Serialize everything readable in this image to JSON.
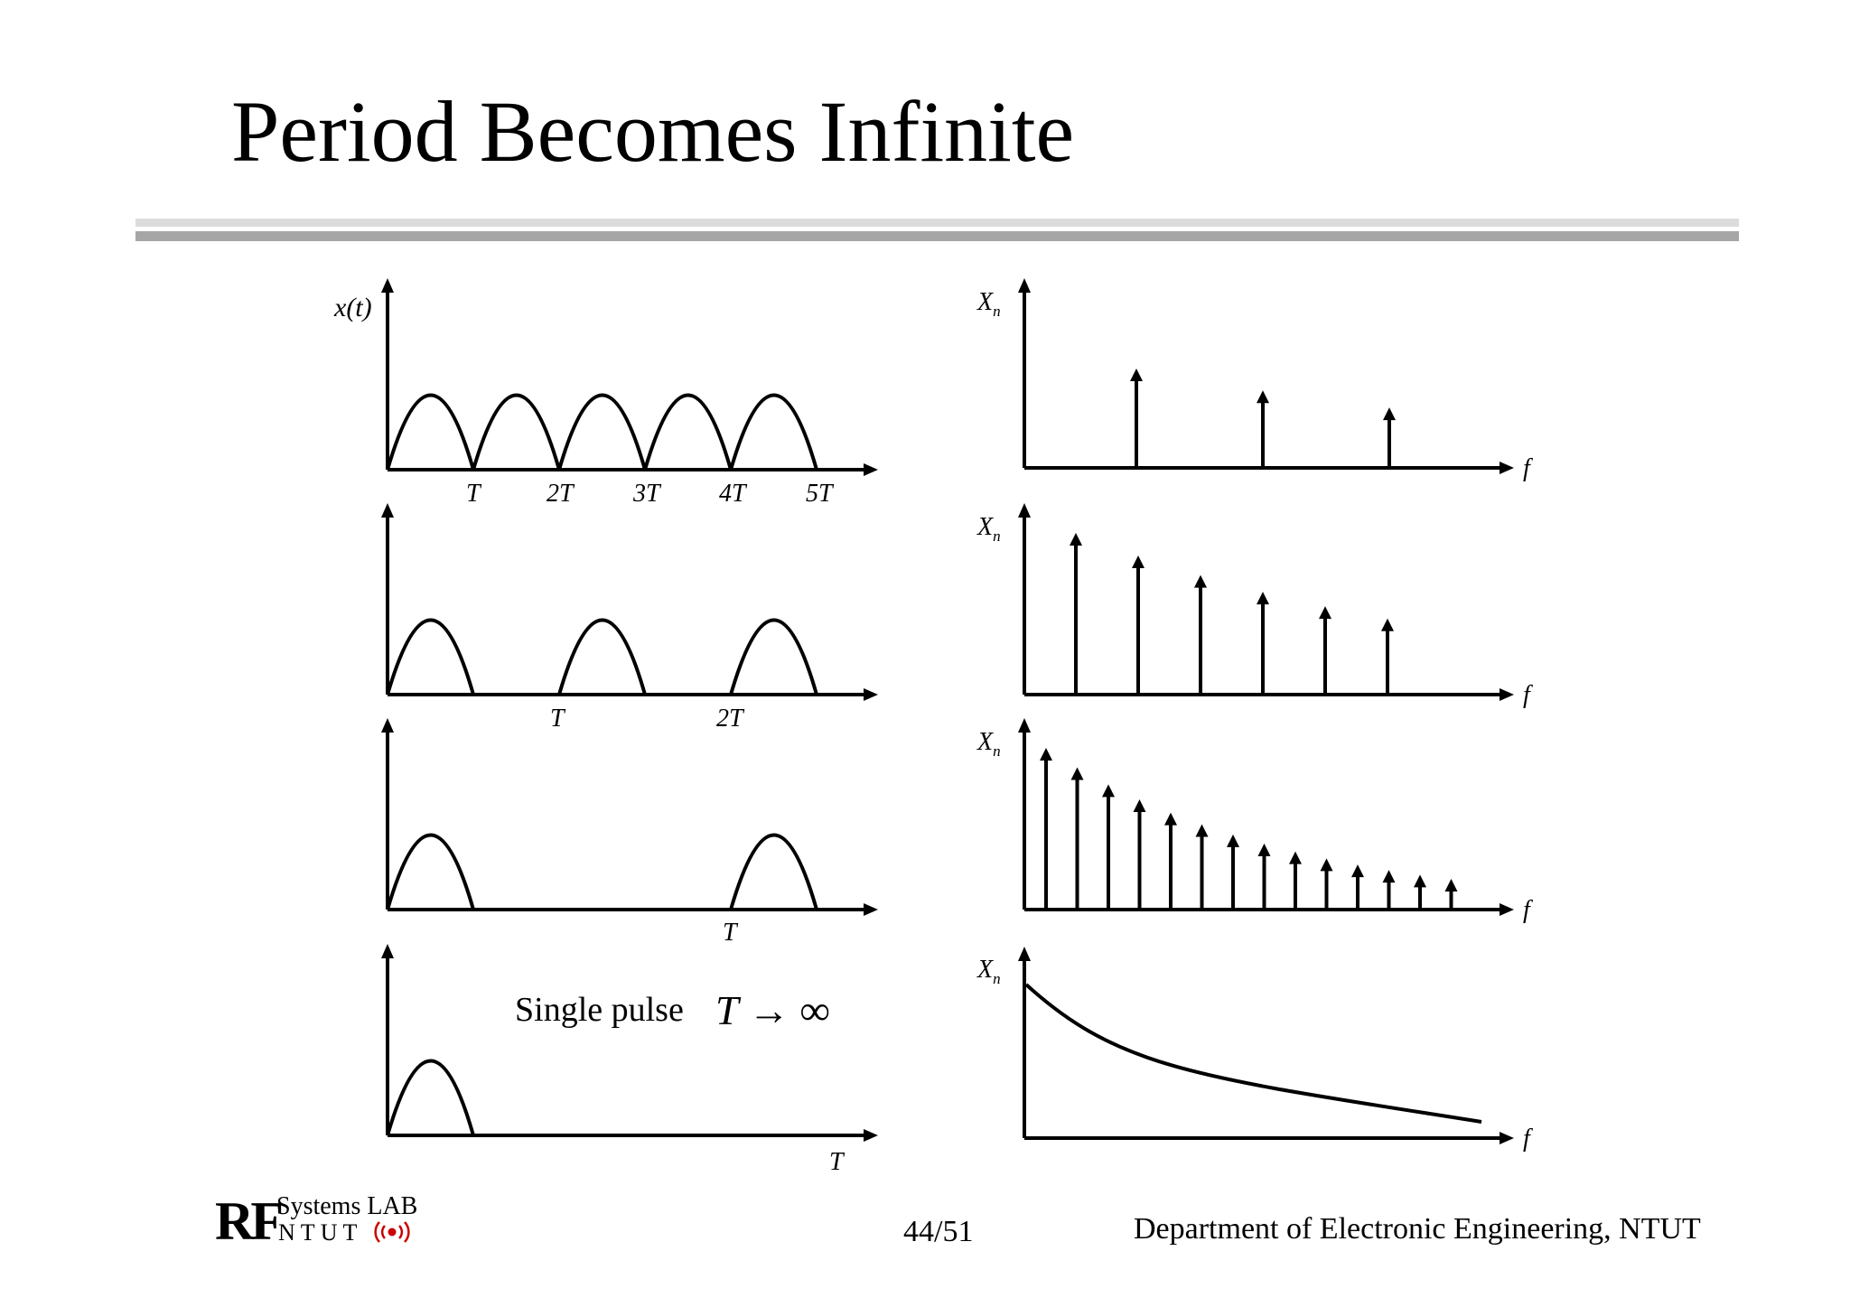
{
  "slide": {
    "title": "Period Becomes Infinite",
    "page": "44/51",
    "department": "Department of Electronic Engineering, NTUT"
  },
  "logo": {
    "mark": "RF",
    "line1": "Systems LAB",
    "line2": "N T U T",
    "icon": "radio-wave-icon",
    "accent": "#cc0000"
  },
  "time_panels": [
    {
      "ylabel": "x(t)",
      "ticks": [
        "T",
        "2T",
        "3T",
        "4T",
        "5T"
      ],
      "pulses": 5
    },
    {
      "ylabel": "",
      "ticks": [
        "T",
        "2T"
      ],
      "pulses": 3
    },
    {
      "ylabel": "",
      "ticks": [
        "T"
      ],
      "pulses": 2
    },
    {
      "ylabel": "",
      "ticks": [
        "T"
      ],
      "pulses": 1,
      "caption": "Single pulse",
      "limit": "T → ∞"
    }
  ],
  "spectrum_panels": [
    {
      "ylabel": "Xn",
      "xlabel": "f",
      "lines": 3
    },
    {
      "ylabel": "Xn",
      "xlabel": "f",
      "lines": 6
    },
    {
      "ylabel": "Xn",
      "xlabel": "f",
      "lines": 14
    },
    {
      "ylabel": "Xn",
      "xlabel": "f",
      "continuous": true
    }
  ]
}
